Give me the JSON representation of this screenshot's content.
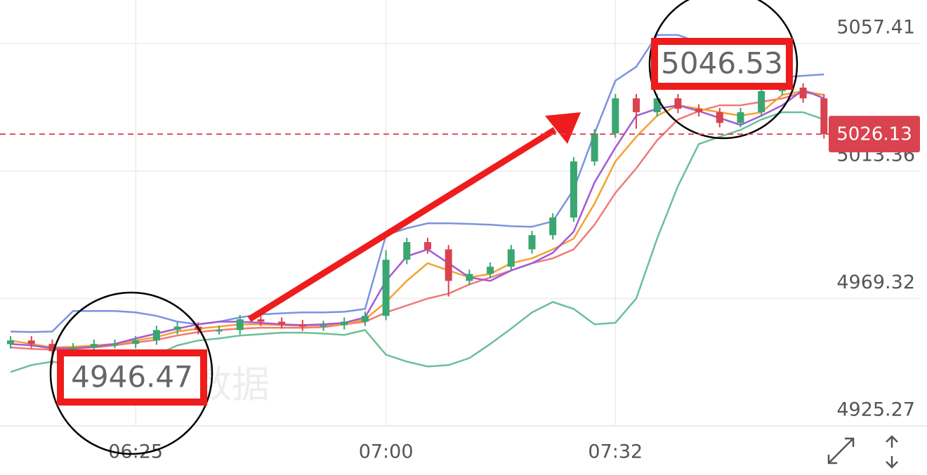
{
  "chart_data": {
    "type": "candlestick",
    "ylim": [
      4925.27,
      5072.5
    ],
    "yticks": [
      4925.27,
      4969.32,
      5013.36,
      5057.41
    ],
    "grid": true,
    "categories": [
      null,
      null,
      null,
      null,
      null,
      null,
      "06:25",
      null,
      null,
      null,
      null,
      null,
      null,
      null,
      null,
      null,
      null,
      null,
      "07:00",
      null,
      null,
      null,
      null,
      null,
      null,
      null,
      null,
      null,
      null,
      "07:32",
      null,
      null,
      null,
      null,
      null,
      null,
      null,
      null,
      null,
      null
    ],
    "up_color": "#3aa672",
    "down_color": "#d9434f",
    "open": [
      4953.5,
      4954.8,
      4953.6,
      4951.1,
      4952.4,
      4953.6,
      4953.6,
      4954.8,
      4958.4,
      4959.6,
      4958.4,
      4958.4,
      4962.1,
      4961.3,
      4960.4,
      4959.6,
      4960.1,
      4961.3,
      4963.3,
      4982.7,
      4988.8,
      4986.3,
      4975.4,
      4977.8,
      4980.3,
      4986.3,
      4991.2,
      4997.3,
      5016.7,
      5026.4,
      5038.5,
      5033.7,
      5038.5,
      5034.9,
      5033.7,
      5030.0,
      5033.7,
      5041.0,
      5042.2,
      5038.5
    ],
    "high": [
      4956.3,
      4956.3,
      4955.1,
      4953.9,
      4955.1,
      4955.1,
      4956.3,
      4959.9,
      4961.1,
      4961.1,
      4959.9,
      4963.6,
      4963.6,
      4962.8,
      4961.9,
      4961.6,
      4962.8,
      4964.8,
      4986.0,
      4990.3,
      4990.3,
      4987.8,
      4979.3,
      4981.8,
      4987.8,
      4992.7,
      4998.8,
      5018.2,
      5027.9,
      5040.0,
      5040.0,
      5040.0,
      5040.0,
      5036.4,
      5035.2,
      5035.2,
      5046.53,
      5043.7,
      5043.7,
      5040.0
    ],
    "low": [
      4952.0,
      4952.1,
      4946.47,
      4949.6,
      4950.9,
      4952.1,
      4952.1,
      4953.3,
      4956.9,
      4956.9,
      4956.9,
      4956.9,
      4959.8,
      4958.9,
      4958.1,
      4958.1,
      4958.6,
      4959.8,
      4961.8,
      4981.2,
      4984.8,
      4970.0,
      4973.9,
      4976.3,
      4978.8,
      4984.8,
      4989.7,
      4995.8,
      5015.2,
      5024.9,
      5028.0,
      5032.2,
      5033.4,
      5032.2,
      5028.5,
      5028.5,
      5032.2,
      5039.5,
      5037.0,
      5024.6
    ],
    "close": [
      4954.8,
      4953.6,
      4951.1,
      4952.4,
      4953.6,
      4953.6,
      4954.8,
      4958.4,
      4959.6,
      4958.4,
      4958.4,
      4962.1,
      4961.3,
      4960.4,
      4959.6,
      4960.1,
      4961.3,
      4963.3,
      4982.7,
      4988.8,
      4986.3,
      4975.4,
      4977.8,
      4980.3,
      4986.3,
      4991.2,
      4997.3,
      5016.7,
      5026.4,
      5038.5,
      5033.7,
      5038.5,
      5034.9,
      5033.7,
      5030.0,
      5033.7,
      5041.0,
      5042.2,
      5038.5,
      5026.13
    ],
    "series": [
      {
        "color": "#7b93e0",
        "values": [
          4957.9,
          4957.7,
          4957.9,
          4965.0,
          4965.0,
          4965.0,
          4964.5,
          4963.3,
          4961.3,
          4960.4,
          4961.3,
          4962.8,
          4963.8,
          4964.2,
          4964.5,
          4964.5,
          4964.7,
          4965.7,
          4991.2,
          4993.6,
          4995.3,
          4995.3,
          4995.1,
          4994.8,
          4994.3,
          4994.1,
          4996.0,
          5007.0,
          5026.4,
          5044.6,
          5049.4,
          5060.4,
          5060.4,
          5057.9,
          5051.9,
          5045.8,
          5044.6,
          5045.8,
          5046.3,
          5046.8
        ]
      },
      {
        "color": "#6cbf98",
        "values": [
          4943.9,
          4946.3,
          4947.5,
          4946.3,
          4946.3,
          4946.3,
          4946.8,
          4949.9,
          4953.1,
          4954.8,
          4955.5,
          4956.5,
          4957.0,
          4957.5,
          4957.5,
          4957.2,
          4956.7,
          4958.4,
          4949.9,
          4947.5,
          4945.8,
          4946.3,
          4948.7,
          4953.6,
          4958.9,
          4964.5,
          4968.1,
          4965.7,
          4960.4,
          4960.9,
          4969.3,
          4990.0,
          5008.2,
          5022.7,
          5025.2,
          5027.6,
          5031.2,
          5033.7,
          5033.7,
          5031.2
        ]
      },
      {
        "color": "#f07a78",
        "values": [
          4952.4,
          4951.9,
          4951.6,
          4951.9,
          4952.4,
          4953.1,
          4954.1,
          4955.0,
          4956.5,
          4957.7,
          4958.4,
          4958.9,
          4959.2,
          4959.2,
          4959.2,
          4959.4,
          4960.4,
          4961.3,
          4964.5,
          4966.9,
          4969.3,
          4971.0,
          4974.2,
          4976.6,
          4979.0,
          4981.5,
          4983.2,
          4986.3,
          4994.8,
          5005.8,
          5014.3,
          5024.0,
          5031.2,
          5034.1,
          5036.1,
          5036.1,
          5037.3,
          5038.5,
          5040.5,
          5039.7
        ]
      },
      {
        "color": "#f3a230",
        "values": [
          4954.8,
          4953.6,
          4952.4,
          4952.6,
          4953.1,
          4953.6,
          4954.8,
          4956.0,
          4957.9,
          4958.9,
          4959.6,
          4960.4,
          4960.4,
          4960.1,
          4959.9,
          4960.1,
          4960.4,
          4962.1,
          4968.1,
          4975.4,
          4981.5,
          4979.0,
          4976.6,
          4977.8,
          4981.5,
          4983.2,
          4986.3,
          4990.0,
          5002.1,
          5016.7,
          5025.2,
          5032.5,
          5036.1,
          5034.9,
          5033.7,
          5032.5,
          5033.7,
          5039.7,
          5041.0,
          5039.7
        ]
      },
      {
        "color": "#a35ad8",
        "values": [
          4953.6,
          4953.1,
          4952.1,
          4952.1,
          4952.6,
          4953.6,
          4955.5,
          4957.2,
          4958.9,
          4960.4,
          4961.3,
          4961.3,
          4960.9,
          4960.4,
          4960.1,
          4960.4,
          4960.9,
          4962.8,
          4975.4,
          4983.9,
          4986.3,
          4981.5,
          4976.6,
          4975.4,
          4979.0,
          4981.5,
          4985.1,
          4992.4,
          5009.4,
          5021.5,
          5032.5,
          5034.9,
          5036.1,
          5034.1,
          5031.7,
          5029.3,
          5032.5,
          5036.1,
          5041.4,
          5038.5
        ]
      }
    ],
    "last_price": 5026.13,
    "annotations": [
      "5046.53",
      "4946.47"
    ],
    "watermark": "数据"
  }
}
